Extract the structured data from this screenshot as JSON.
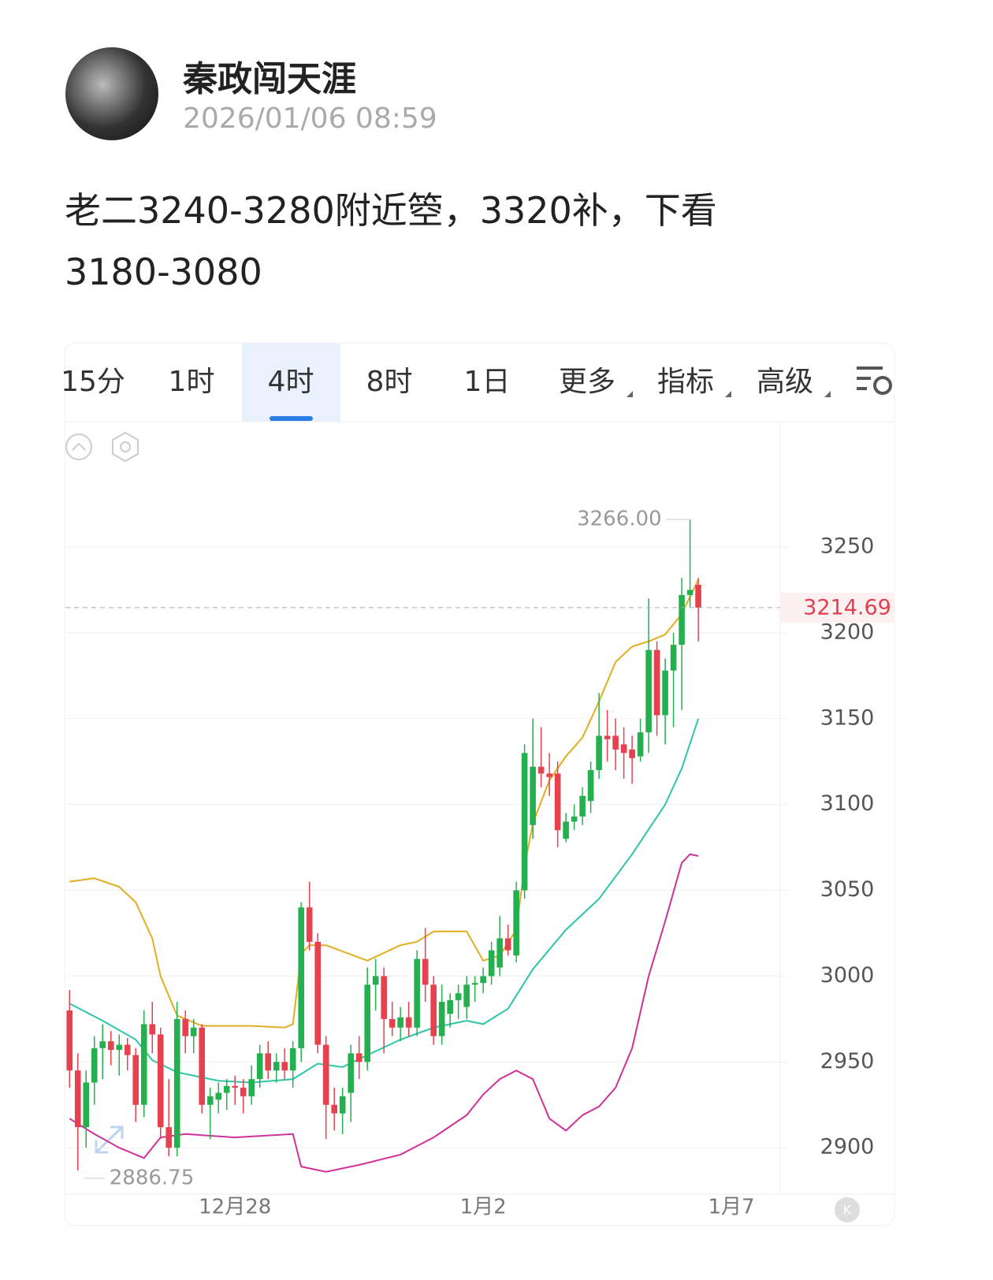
{
  "post": {
    "author": "秦政闯天涯",
    "time": "2026/01/06 08:59",
    "text": "老二3240-3280附近箜，3320补，下看3180-3080"
  },
  "tabs": {
    "items": [
      "15分",
      "1时",
      "4时",
      "8时",
      "1日",
      "更多",
      "指标",
      "高级"
    ],
    "active": 2
  },
  "chart_data": {
    "type": "candlestick",
    "x": [
      0,
      1,
      2,
      3,
      4,
      5,
      6,
      7,
      8,
      9,
      10,
      11,
      12,
      13,
      14,
      15,
      16,
      17,
      18,
      19,
      20,
      21,
      22,
      23,
      24,
      25,
      26,
      27,
      28,
      29,
      30,
      31,
      32,
      33,
      34,
      35,
      36,
      37,
      38,
      39,
      40,
      41,
      42,
      43,
      44,
      45,
      46,
      47,
      48,
      49,
      50,
      51,
      52,
      53,
      54,
      55,
      56,
      57,
      58,
      59,
      60,
      61,
      62,
      63,
      64,
      65,
      66,
      67,
      68,
      69,
      70,
      71,
      72,
      73,
      74,
      75,
      76
    ],
    "open": [
      2980,
      2945,
      2912,
      2938,
      2958,
      2962,
      2957,
      2960,
      2954,
      2925,
      2972,
      2966,
      2912,
      2900,
      2975,
      2965,
      2970,
      2925,
      2928,
      2932,
      2936,
      2935,
      2930,
      2940,
      2955,
      2945,
      2950,
      2945,
      2958,
      3040,
      3020,
      2960,
      2925,
      2920,
      2932,
      2955,
      2950,
      2995,
      3000,
      2975,
      2970,
      2976,
      2970,
      3010,
      2995,
      2965,
      2978,
      2986,
      2982,
      2995,
      2996,
      3000,
      3005,
      3022,
      3012,
      3050,
      3088,
      3122,
      3118,
      3118,
      3080,
      3090,
      3093,
      3102,
      3120,
      3140,
      3140,
      3135,
      3132,
      3128,
      3142,
      3190,
      3152,
      3178,
      3193,
      3222,
      3228
    ],
    "high": [
      2992,
      2955,
      2945,
      2965,
      2972,
      2968,
      2966,
      2964,
      2958,
      2980,
      2985,
      2970,
      2940,
      2985,
      2980,
      2975,
      2972,
      2935,
      2938,
      2940,
      2942,
      2940,
      2948,
      2960,
      2962,
      2955,
      2958,
      2962,
      3043,
      3055,
      3025,
      2965,
      2935,
      2935,
      2960,
      2965,
      3005,
      3010,
      3005,
      2985,
      2982,
      2985,
      3015,
      3028,
      3000,
      2995,
      2990,
      2995,
      3000,
      3000,
      3005,
      3020,
      3035,
      3030,
      3055,
      3135,
      3150,
      3145,
      3130,
      3125,
      3095,
      3100,
      3110,
      3125,
      3165,
      3155,
      3150,
      3145,
      3140,
      3150,
      3220,
      3195,
      3185,
      3200,
      3232,
      3266,
      3232
    ],
    "low": [
      2935,
      2886.75,
      2900,
      2925,
      2940,
      2948,
      2942,
      2945,
      2915,
      2918,
      2955,
      2905,
      2895,
      2895,
      2955,
      2955,
      2920,
      2905,
      2920,
      2922,
      2925,
      2920,
      2925,
      2935,
      2940,
      2938,
      2940,
      2935,
      2950,
      3015,
      2955,
      2905,
      2910,
      2908,
      2915,
      2940,
      2945,
      2980,
      2955,
      2965,
      2962,
      2965,
      2965,
      2985,
      2960,
      2960,
      2970,
      2975,
      2975,
      2985,
      2990,
      2995,
      3000,
      3012,
      3008,
      3045,
      3080,
      3110,
      3105,
      3075,
      3078,
      3085,
      3088,
      3095,
      3115,
      3125,
      3120,
      3115,
      3112,
      3125,
      3130,
      3140,
      3135,
      3145,
      3155,
      3215,
      3195
    ],
    "close": [
      2945,
      2912,
      2938,
      2958,
      2962,
      2957,
      2960,
      2954,
      2925,
      2972,
      2966,
      2912,
      2900,
      2975,
      2965,
      2970,
      2925,
      2930,
      2932,
      2936,
      2935,
      2930,
      2940,
      2955,
      2945,
      2950,
      2945,
      2958,
      3040,
      3020,
      2960,
      2925,
      2920,
      2930,
      2955,
      2950,
      2995,
      3000,
      2975,
      2970,
      2976,
      2970,
      3010,
      2995,
      2965,
      2985,
      2986,
      2990,
      2995,
      2996,
      3000,
      3015,
      3022,
      3015,
      3050,
      3130,
      3122,
      3118,
      3116,
      3085,
      3090,
      3093,
      3105,
      3120,
      3140,
      3138,
      3132,
      3130,
      3127,
      3142,
      3190,
      3152,
      3178,
      3193,
      3222,
      3225,
      3214.69
    ],
    "up_color": "#25b04f",
    "down_color": "#e6414f",
    "bands": [
      {
        "color": "#e3ad22",
        "x": [
          0,
          3,
          6,
          8,
          10,
          11,
          13,
          16,
          22,
          26,
          27,
          28,
          29,
          31,
          36,
          40,
          42,
          44,
          48,
          50,
          52,
          54,
          55,
          56,
          58,
          60,
          62,
          64,
          66,
          68,
          70,
          72,
          74,
          76
        ],
        "values": [
          3055,
          3057,
          3052,
          3043,
          3022,
          3000,
          2977,
          2971,
          2971,
          2970,
          2972,
          3013,
          3018,
          3018,
          3009,
          3018,
          3020,
          3026,
          3026,
          3009,
          3012,
          3027,
          3064,
          3089,
          3114,
          3128,
          3139,
          3160,
          3183,
          3192,
          3195,
          3199,
          3211,
          3231
        ]
      },
      {
        "color": "#2ec4a8",
        "x": [
          0,
          4,
          8,
          10,
          13,
          18,
          22,
          27,
          30,
          33,
          36,
          40,
          44,
          48,
          50,
          53,
          56,
          60,
          64,
          68,
          72,
          74,
          76
        ],
        "values": [
          2984,
          2974,
          2963,
          2951,
          2944,
          2939,
          2938,
          2940,
          2949,
          2947,
          2954,
          2963,
          2970,
          2974,
          2972,
          2981,
          3004,
          3027,
          3045,
          3071,
          3100,
          3121,
          3150
        ]
      },
      {
        "color": "#d0309a",
        "x": [
          0,
          3,
          6,
          9,
          11,
          14,
          20,
          27,
          28,
          31,
          35,
          40,
          44,
          48,
          50,
          52,
          54,
          56,
          58,
          60,
          62,
          64,
          66,
          68,
          70,
          72,
          74,
          75,
          76
        ],
        "values": [
          2917,
          2908,
          2900,
          2894,
          2906,
          2908,
          2906,
          2908,
          2889,
          2886,
          2890,
          2896,
          2906,
          2919,
          2931,
          2940,
          2945,
          2940,
          2917,
          2910,
          2919,
          2924,
          2935,
          2958,
          3000,
          3032,
          3066,
          3071,
          3070
        ]
      }
    ],
    "xlim": [
      -0.5,
      85.9
    ],
    "ylim": [
      2873,
      3323
    ],
    "xticks": [
      {
        "value": 20,
        "label": "12月28"
      },
      {
        "value": 50,
        "label": "1月2"
      },
      {
        "value": 80,
        "label": "1月7"
      }
    ],
    "yticks": [
      2900,
      2950,
      3000,
      3050,
      3100,
      3150,
      3200,
      3250
    ],
    "grid": true,
    "high_label": {
      "x": 75,
      "value": 3266,
      "label": "3266.00"
    },
    "low_label": {
      "x": 1,
      "value": 2886.75
    },
    "last_price": 3214.69
  }
}
